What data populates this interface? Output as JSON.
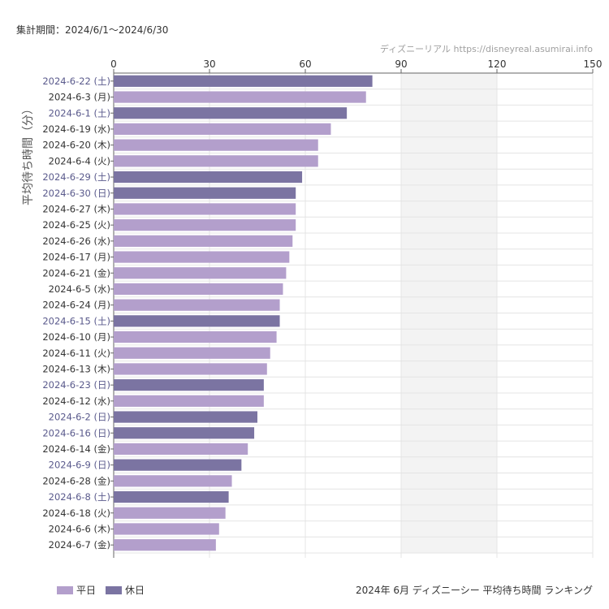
{
  "header": {
    "period": "集計期間：2024/6/1～2024/6/30",
    "source": "ディズニーリアル https://disneyreal.asumirai.info"
  },
  "footer": {
    "title": "2024年 6月 ディズニーシー 平均待ち時間 ランキング"
  },
  "colors": {
    "weekday": "#b39fcc",
    "holiday": "#7b74a2",
    "holiday_label": "#5a5a8c",
    "weekday_label": "#333333",
    "shade": "#f3f3f3",
    "grid": "#e4e4e4"
  },
  "chart_data": {
    "type": "bar",
    "orientation": "horizontal",
    "ylabel": "平均待ち時間（分）",
    "xlim": [
      0,
      150
    ],
    "xticks": [
      0,
      30,
      60,
      90,
      120,
      150
    ],
    "shaded_range": [
      90,
      120
    ],
    "legend": [
      {
        "name": "平日",
        "key": "weekday"
      },
      {
        "name": "休日",
        "key": "holiday"
      }
    ],
    "categories": [
      "2024-6-22 (土)",
      "2024-6-3 (月)",
      "2024-6-1 (土)",
      "2024-6-19 (水)",
      "2024-6-20 (木)",
      "2024-6-4 (火)",
      "2024-6-29 (土)",
      "2024-6-30 (日)",
      "2024-6-27 (木)",
      "2024-6-25 (火)",
      "2024-6-26 (水)",
      "2024-6-17 (月)",
      "2024-6-21 (金)",
      "2024-6-5 (水)",
      "2024-6-24 (月)",
      "2024-6-15 (土)",
      "2024-6-10 (月)",
      "2024-6-11 (火)",
      "2024-6-13 (木)",
      "2024-6-23 (日)",
      "2024-6-12 (水)",
      "2024-6-2 (日)",
      "2024-6-16 (日)",
      "2024-6-14 (金)",
      "2024-6-9 (日)",
      "2024-6-28 (金)",
      "2024-6-8 (土)",
      "2024-6-18 (火)",
      "2024-6-6 (木)",
      "2024-6-7 (金)"
    ],
    "values": [
      81,
      79,
      73,
      68,
      64,
      64,
      59,
      57,
      57,
      57,
      56,
      55,
      54,
      53,
      52,
      52,
      51,
      49,
      48,
      47,
      47,
      45,
      44,
      42,
      40,
      37,
      36,
      35,
      33,
      32
    ],
    "day_type": [
      "holiday",
      "weekday",
      "holiday",
      "weekday",
      "weekday",
      "weekday",
      "holiday",
      "holiday",
      "weekday",
      "weekday",
      "weekday",
      "weekday",
      "weekday",
      "weekday",
      "weekday",
      "holiday",
      "weekday",
      "weekday",
      "weekday",
      "holiday",
      "weekday",
      "holiday",
      "holiday",
      "weekday",
      "holiday",
      "weekday",
      "holiday",
      "weekday",
      "weekday",
      "weekday"
    ]
  }
}
